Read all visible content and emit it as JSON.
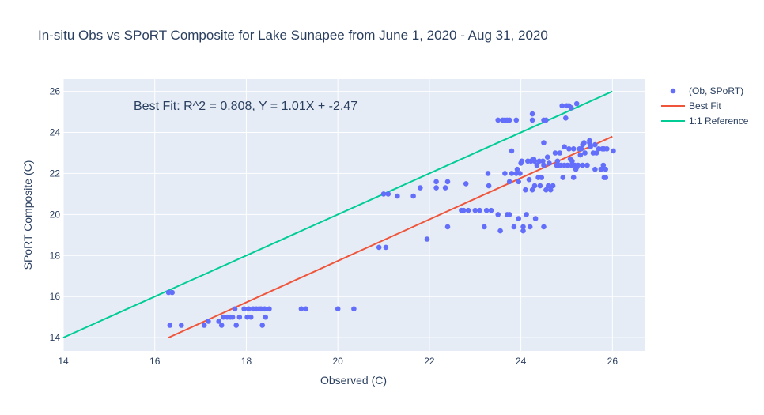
{
  "chart_data": {
    "type": "scatter",
    "title": "In-situ Obs vs SPoRT Composite for Lake Sunapee from June 1, 2020 - Aug 31, 2020",
    "xlabel": "Observed (C)",
    "ylabel": "SPoRT Composite (C)",
    "xlim": [
      14,
      26.72
    ],
    "ylim": [
      13.35,
      26.6
    ],
    "xticks": [
      14,
      16,
      18,
      20,
      22,
      24,
      26
    ],
    "yticks": [
      14,
      16,
      18,
      20,
      22,
      24,
      26
    ],
    "grid": true,
    "legend_position": "right",
    "plot_background": "#e5ecf6",
    "annotation": "Best Fit: R^2 = 0.808, Y = 1.01X + -2.47",
    "series": [
      {
        "name": "(Ob, SPoRT)",
        "mode": "markers",
        "color": "#636efa",
        "points": [
          [
            16.3,
            16.2
          ],
          [
            16.38,
            16.2
          ],
          [
            16.33,
            14.6
          ],
          [
            16.58,
            14.6
          ],
          [
            17.08,
            14.6
          ],
          [
            17.17,
            14.8
          ],
          [
            17.4,
            14.8
          ],
          [
            17.46,
            14.6
          ],
          [
            17.5,
            15.0
          ],
          [
            17.58,
            15.0
          ],
          [
            17.65,
            15.0
          ],
          [
            17.7,
            15.0
          ],
          [
            17.75,
            15.4
          ],
          [
            17.78,
            14.6
          ],
          [
            17.85,
            15.0
          ],
          [
            17.95,
            15.4
          ],
          [
            18.02,
            15.0
          ],
          [
            18.05,
            15.4
          ],
          [
            18.1,
            15.0
          ],
          [
            18.15,
            15.4
          ],
          [
            18.22,
            15.4
          ],
          [
            18.28,
            15.4
          ],
          [
            18.32,
            15.4
          ],
          [
            18.35,
            14.6
          ],
          [
            18.4,
            15.4
          ],
          [
            18.42,
            15.0
          ],
          [
            18.5,
            15.4
          ],
          [
            19.2,
            15.4
          ],
          [
            19.3,
            15.4
          ],
          [
            20.0,
            15.4
          ],
          [
            20.35,
            15.4
          ],
          [
            20.9,
            18.4
          ],
          [
            21.05,
            18.4
          ],
          [
            21.0,
            21.0
          ],
          [
            21.1,
            21.0
          ],
          [
            21.3,
            20.9
          ],
          [
            21.65,
            20.9
          ],
          [
            21.8,
            21.3
          ],
          [
            21.95,
            18.8
          ],
          [
            22.15,
            21.3
          ],
          [
            22.15,
            21.6
          ],
          [
            22.35,
            21.3
          ],
          [
            22.4,
            21.6
          ],
          [
            22.4,
            19.4
          ],
          [
            22.7,
            20.2
          ],
          [
            22.75,
            20.2
          ],
          [
            22.85,
            20.2
          ],
          [
            22.8,
            21.5
          ],
          [
            23.0,
            20.2
          ],
          [
            23.1,
            20.2
          ],
          [
            23.2,
            19.4
          ],
          [
            23.25,
            20.2
          ],
          [
            23.28,
            22.0
          ],
          [
            23.3,
            21.4
          ],
          [
            23.35,
            20.2
          ],
          [
            23.5,
            20.0
          ],
          [
            23.5,
            24.6
          ],
          [
            23.55,
            19.2
          ],
          [
            23.6,
            24.6
          ],
          [
            23.65,
            24.6
          ],
          [
            23.65,
            22.0
          ],
          [
            23.7,
            20.0
          ],
          [
            23.7,
            24.6
          ],
          [
            23.75,
            20.0
          ],
          [
            23.75,
            24.6
          ],
          [
            23.75,
            21.6
          ],
          [
            23.8,
            22.0
          ],
          [
            23.8,
            23.1
          ],
          [
            23.85,
            19.4
          ],
          [
            23.9,
            24.6
          ],
          [
            23.9,
            22.0
          ],
          [
            23.92,
            22.2
          ],
          [
            23.95,
            19.8
          ],
          [
            23.95,
            21.6
          ],
          [
            23.98,
            22.0
          ],
          [
            24.0,
            22.5
          ],
          [
            24.02,
            22.6
          ],
          [
            24.05,
            19.4
          ],
          [
            24.05,
            19.2
          ],
          [
            24.1,
            21.2
          ],
          [
            24.12,
            20.0
          ],
          [
            24.15,
            22.6
          ],
          [
            24.18,
            21.7
          ],
          [
            24.2,
            19.4
          ],
          [
            24.22,
            22.6
          ],
          [
            24.25,
            24.9
          ],
          [
            24.25,
            24.6
          ],
          [
            24.25,
            21.2
          ],
          [
            24.28,
            22.7
          ],
          [
            24.3,
            21.4
          ],
          [
            24.3,
            22.6
          ],
          [
            24.32,
            19.8
          ],
          [
            24.35,
            22.4
          ],
          [
            24.38,
            21.8
          ],
          [
            24.4,
            22.6
          ],
          [
            24.42,
            21.4
          ],
          [
            24.45,
            21.8
          ],
          [
            24.48,
            22.6
          ],
          [
            24.5,
            22.4
          ],
          [
            24.5,
            23.5
          ],
          [
            24.5,
            24.6
          ],
          [
            24.5,
            19.4
          ],
          [
            24.55,
            24.6
          ],
          [
            24.55,
            21.2
          ],
          [
            24.58,
            22.8
          ],
          [
            24.6,
            21.4
          ],
          [
            24.62,
            22.5
          ],
          [
            24.65,
            21.2
          ],
          [
            24.7,
            21.4
          ],
          [
            24.75,
            23.0
          ],
          [
            24.78,
            22.4
          ],
          [
            24.8,
            22.6
          ],
          [
            24.82,
            22.4
          ],
          [
            24.85,
            23.0
          ],
          [
            24.88,
            22.4
          ],
          [
            24.9,
            25.3
          ],
          [
            24.92,
            21.8
          ],
          [
            24.95,
            22.4
          ],
          [
            24.95,
            23.3
          ],
          [
            24.98,
            24.7
          ],
          [
            25.0,
            25.3
          ],
          [
            25.02,
            22.4
          ],
          [
            25.05,
            23.2
          ],
          [
            25.05,
            25.3
          ],
          [
            25.08,
            22.7
          ],
          [
            25.1,
            22.4
          ],
          [
            25.1,
            25.2
          ],
          [
            25.12,
            22.6
          ],
          [
            25.15,
            23.2
          ],
          [
            25.15,
            21.8
          ],
          [
            25.18,
            22.4
          ],
          [
            25.2,
            22.2
          ],
          [
            25.22,
            22.3
          ],
          [
            25.22,
            25.4
          ],
          [
            25.25,
            22.4
          ],
          [
            25.28,
            23.2
          ],
          [
            25.3,
            22.9
          ],
          [
            25.32,
            23.2
          ],
          [
            25.35,
            23.4
          ],
          [
            25.35,
            22.4
          ],
          [
            25.38,
            23.5
          ],
          [
            25.4,
            23.0
          ],
          [
            25.45,
            22.4
          ],
          [
            25.5,
            23.5
          ],
          [
            25.5,
            23.6
          ],
          [
            25.52,
            23.3
          ],
          [
            25.58,
            23.0
          ],
          [
            25.62,
            22.2
          ],
          [
            25.62,
            23.4
          ],
          [
            25.65,
            23.0
          ],
          [
            25.7,
            23.2
          ],
          [
            25.75,
            22.2
          ],
          [
            25.78,
            23.2
          ],
          [
            25.8,
            22.4
          ],
          [
            25.82,
            23.2
          ],
          [
            25.82,
            21.8
          ],
          [
            25.85,
            22.2
          ],
          [
            25.88,
            23.2
          ],
          [
            25.85,
            21.8
          ],
          [
            26.02,
            23.1
          ]
        ]
      },
      {
        "name": "Best Fit",
        "mode": "line",
        "color": "#ef553b",
        "points": [
          [
            16.3,
            14.0
          ],
          [
            26.0,
            23.8
          ]
        ]
      },
      {
        "name": "1:1 Reference",
        "mode": "line",
        "color": "#00cc96",
        "points": [
          [
            14.0,
            14.0
          ],
          [
            26.0,
            26.0
          ]
        ]
      }
    ]
  }
}
